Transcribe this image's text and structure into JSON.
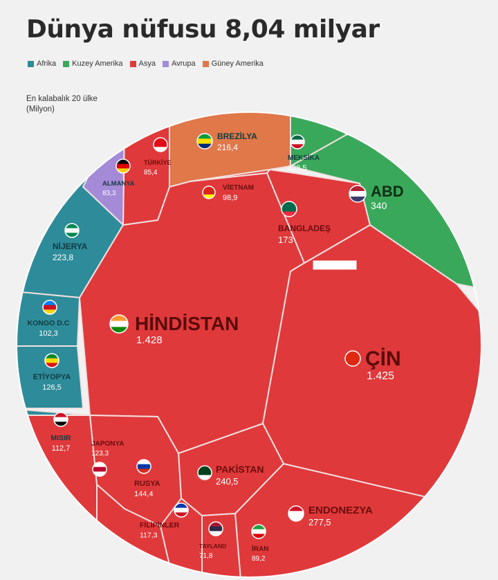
{
  "title": "Dünya nüfusu 8,04 milyar",
  "legend": [
    {
      "label": "Afrika",
      "color": "#2e8c9a"
    },
    {
      "label": "Kuzey Amerika",
      "color": "#3aa85a"
    },
    {
      "label": "Asya",
      "color": "#e0393b"
    },
    {
      "label": "Avrupa",
      "color": "#a58ad8"
    },
    {
      "label": "Güney Amerika",
      "color": "#e0784a"
    }
  ],
  "subtitle_line1": "En kalabalık 20 ülke",
  "subtitle_line2": "(Milyon)",
  "chart_data": {
    "type": "voronoi-treemap",
    "title": "Dünya nüfusu 8,04 milyar",
    "subtitle": "En kalabalık 20 ülke (Milyon)",
    "series": [
      {
        "name": "Afrika",
        "color": "#2e8c9a",
        "items": [
          {
            "country": "NİJERYA",
            "value": 223.8,
            "label": "223,8"
          },
          {
            "country": "KONGO D.C",
            "value": 102.3,
            "label": "102,3"
          },
          {
            "country": "ETİYOPYA",
            "value": 126.5,
            "label": "126,5"
          },
          {
            "country": "MISIR",
            "value": 112.7,
            "label": "112,7"
          }
        ]
      },
      {
        "name": "Kuzey Amerika",
        "color": "#3aa85a",
        "items": [
          {
            "country": "ABD",
            "value": 340,
            "label": "340"
          },
          {
            "country": "MEKSİKA",
            "value": 128.5,
            "label": "128,5"
          }
        ]
      },
      {
        "name": "Asya",
        "color": "#e0393b",
        "items": [
          {
            "country": "HİNDİSTAN",
            "value": 1428,
            "label": "1.428"
          },
          {
            "country": "ÇİN",
            "value": 1425,
            "label": "1.425"
          },
          {
            "country": "ENDONEZYA",
            "value": 277.5,
            "label": "277,5"
          },
          {
            "country": "PAKİSTAN",
            "value": 240.5,
            "label": "240,5"
          },
          {
            "country": "BANGLADEŞ",
            "value": 173,
            "label": "173"
          },
          {
            "country": "RUSYA",
            "value": 144.4,
            "label": "144,4"
          },
          {
            "country": "JAPONYA",
            "value": 123.3,
            "label": "123,3"
          },
          {
            "country": "FİLİPİNLER",
            "value": 117.3,
            "label": "117,3"
          },
          {
            "country": "VİETNAM",
            "value": 98.9,
            "label": "98,9"
          },
          {
            "country": "İRAN",
            "value": 89.2,
            "label": "89,2"
          },
          {
            "country": "TAYLAND",
            "value": 71.8,
            "label": "71,8"
          },
          {
            "country": "TÜRKİYE",
            "value": 85.4,
            "label": "85,4"
          }
        ]
      },
      {
        "name": "Avrupa",
        "color": "#a58ad8",
        "items": [
          {
            "country": "ALMANYA",
            "value": 83.3,
            "label": "83,3"
          }
        ]
      },
      {
        "name": "Güney Amerika",
        "color": "#e0784a",
        "items": [
          {
            "country": "BREZİLYA",
            "value": 216.4,
            "label": "216,4"
          }
        ]
      }
    ]
  }
}
